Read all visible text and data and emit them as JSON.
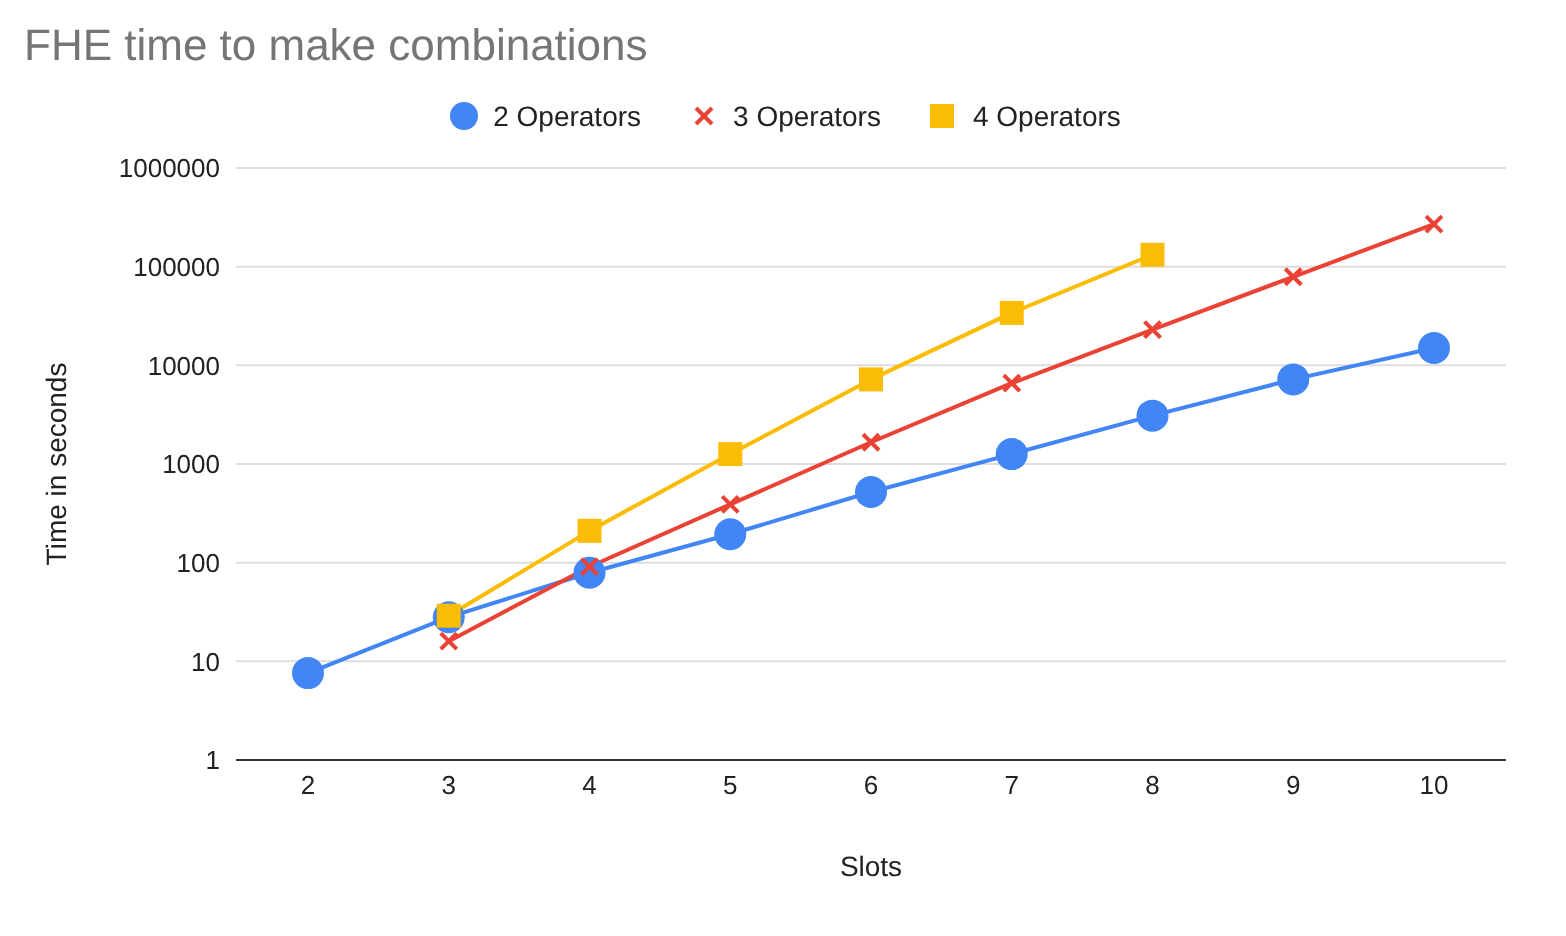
{
  "chart_data": {
    "type": "line",
    "title": "FHE time to make combinations",
    "xlabel": "Slots",
    "ylabel": "Time in seconds",
    "categories": [
      "2",
      "3",
      "4",
      "5",
      "6",
      "7",
      "8",
      "9",
      "10"
    ],
    "series": [
      {
        "name": "2 Operators",
        "color": "#4285f4",
        "marker": "circle",
        "values": [
          7.6,
          28,
          79,
          194,
          520,
          1260,
          3090,
          7200,
          15000
        ]
      },
      {
        "name": "3 Operators",
        "color": "#ea4335",
        "marker": "cross",
        "values": [
          null,
          16,
          91,
          390,
          1660,
          6600,
          23000,
          79000,
          270000
        ]
      },
      {
        "name": "4 Operators",
        "color": "#fbbc04",
        "marker": "square",
        "values": [
          null,
          29,
          210,
          1260,
          7200,
          34000,
          132000,
          null,
          null
        ]
      }
    ],
    "log": "y",
    "ylim": [
      1,
      1000000
    ],
    "yticks": [
      1,
      10,
      100,
      1000,
      10000,
      100000,
      1000000
    ],
    "grid": "y",
    "legend": "top",
    "line_style": "solid"
  }
}
